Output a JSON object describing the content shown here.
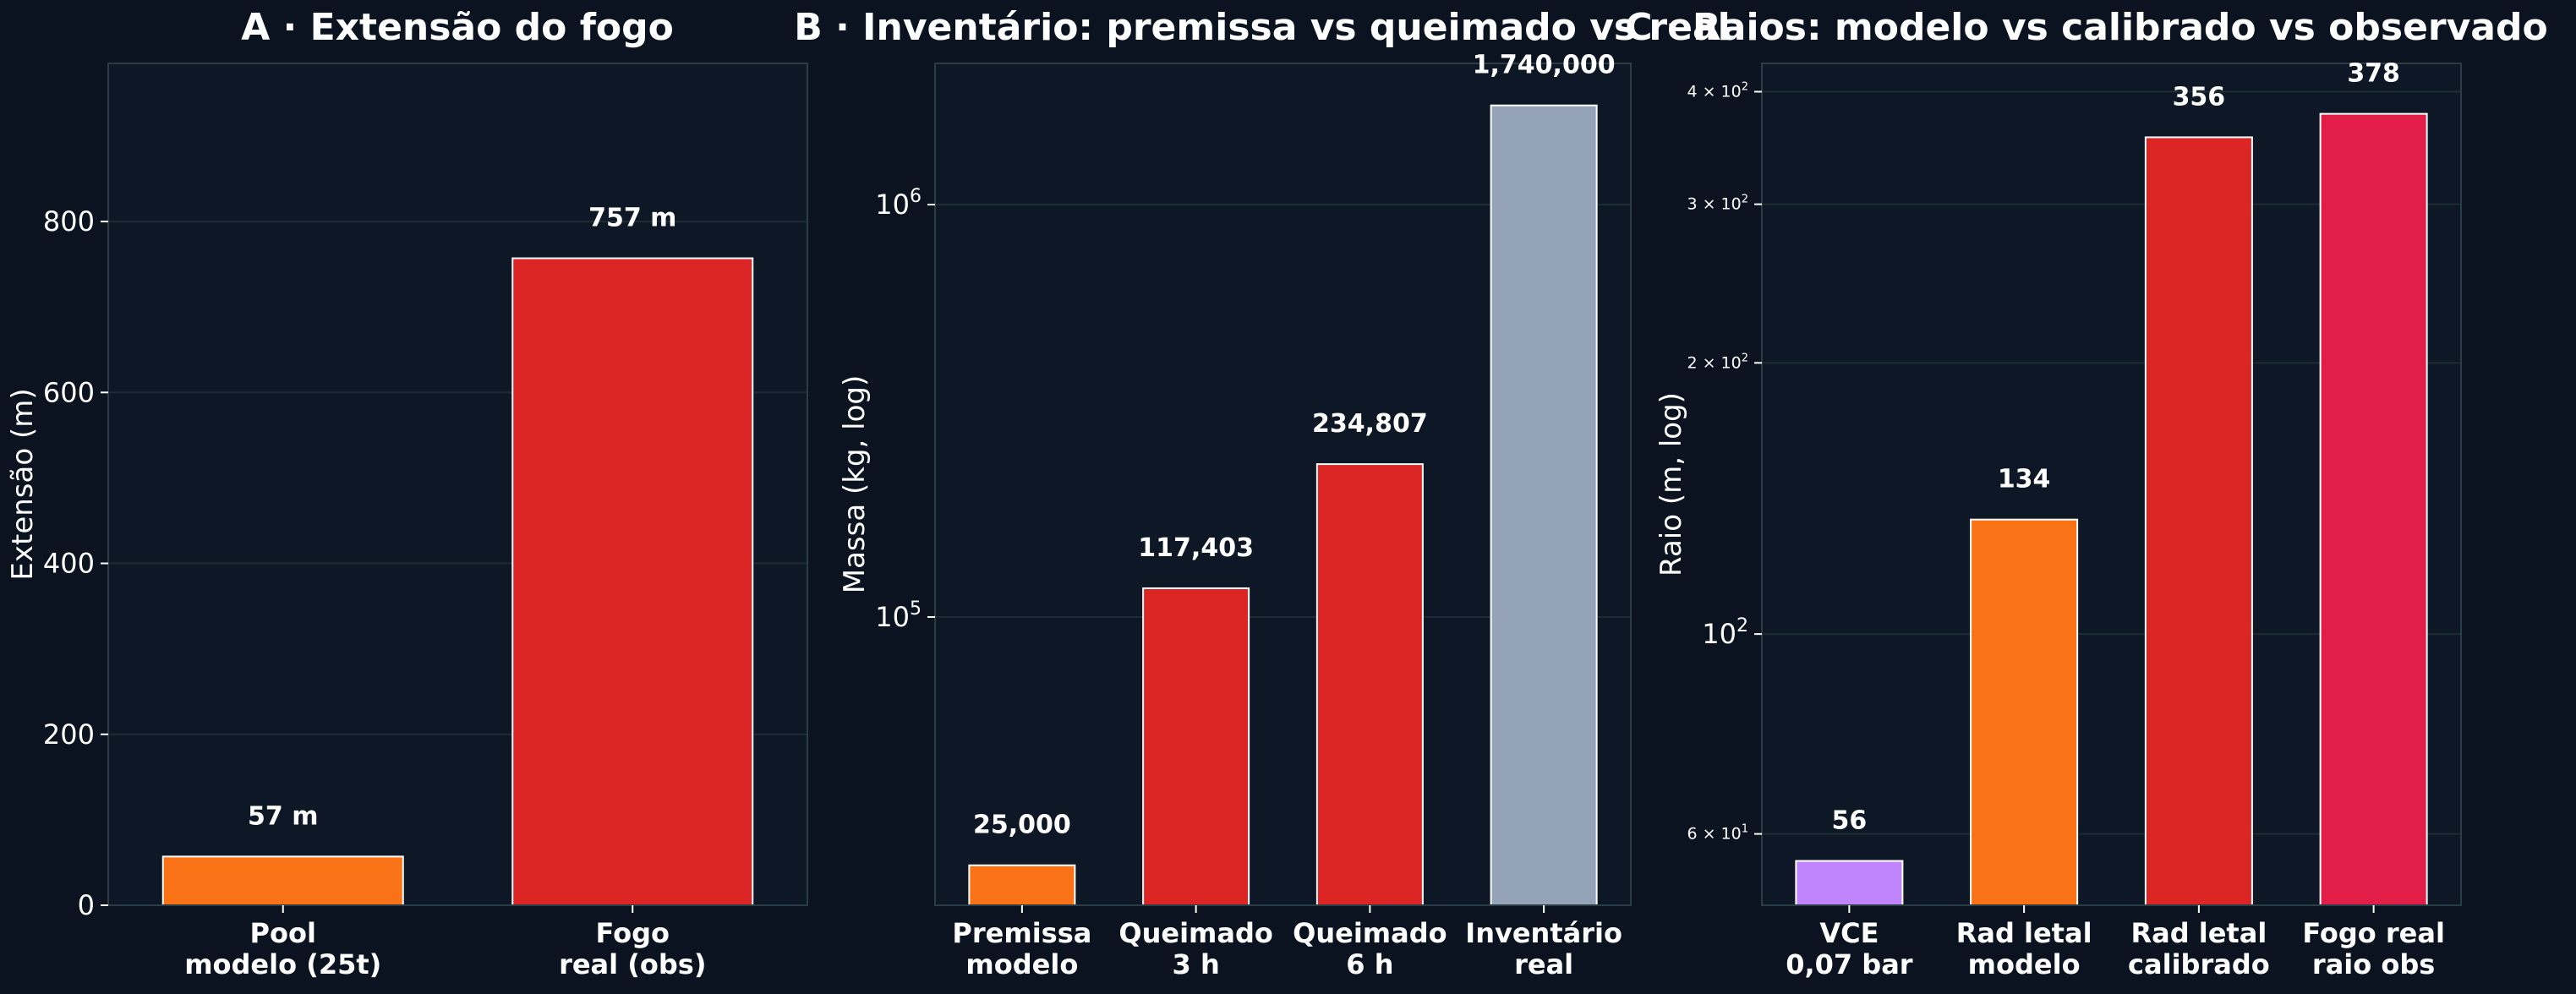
{
  "colors": {
    "background": "#0b1320",
    "axes_face": "#0d1726",
    "axes_border": "#2b3d44",
    "grid": "#1c2d33",
    "text": "#ffffff",
    "bar_edge": "#ffffff"
  },
  "chart_data": [
    {
      "id": "A",
      "type": "bar",
      "title": "A · Extensão do fogo",
      "xlabel": "",
      "ylabel": "Extensão (m)",
      "yscale": "linear",
      "ylim": [
        0,
        985
      ],
      "yticks": [
        0,
        200,
        400,
        600,
        800
      ],
      "ytick_labels": [
        "0",
        "200",
        "400",
        "600",
        "800"
      ],
      "grid": "y",
      "categories": [
        [
          "Pool",
          "modelo (25t)"
        ],
        [
          "Fogo",
          "real (obs)"
        ]
      ],
      "values": [
        57,
        757
      ],
      "value_labels": [
        "57 m",
        "757 m"
      ],
      "bar_colors": [
        "#f97316",
        "#dc2626"
      ]
    },
    {
      "id": "B",
      "type": "bar",
      "title": "B · Inventário: premissa vs queimado vs real",
      "xlabel": "",
      "ylabel": "Massa (kg, log)",
      "yscale": "log",
      "ylim": [
        20000,
        2200000
      ],
      "yticks": [
        100000,
        1000000
      ],
      "ytick_labels": [
        {
          "base": "10",
          "exp": "5"
        },
        {
          "base": "10",
          "exp": "6"
        }
      ],
      "grid": "y",
      "categories": [
        [
          "Premissa",
          "modelo"
        ],
        [
          "Queimado",
          "3 h"
        ],
        [
          "Queimado",
          "6 h"
        ],
        [
          "Inventário",
          "real"
        ]
      ],
      "values": [
        25000,
        117403,
        234807,
        1740000
      ],
      "value_labels": [
        "25,000",
        "117,403",
        "234,807",
        "1,740,000"
      ],
      "bar_colors": [
        "#f97316",
        "#dc2626",
        "#dc2626",
        "#94a3b8"
      ]
    },
    {
      "id": "C",
      "type": "bar",
      "title": "C · Raios: modelo vs calibrado vs observado",
      "xlabel": "",
      "ylabel": "Raio (m, log)",
      "yscale": "log",
      "ylim": [
        50,
        430
      ],
      "yticks": [
        60,
        100,
        200,
        300,
        400
      ],
      "ytick_labels": [
        {
          "base": "6 × 10",
          "exp": "1"
        },
        {
          "base": "10",
          "exp": "2"
        },
        {
          "base": "2 × 10",
          "exp": "2"
        },
        {
          "base": "3 × 10",
          "exp": "2"
        },
        {
          "base": "4 × 10",
          "exp": "2"
        }
      ],
      "major_ticks": [
        100
      ],
      "grid": "y",
      "categories": [
        [
          "VCE",
          "0,07 bar"
        ],
        [
          "Rad letal",
          "modelo"
        ],
        [
          "Rad letal",
          "calibrado"
        ],
        [
          "Fogo real",
          "raio obs"
        ]
      ],
      "values": [
        56,
        134,
        356,
        378
      ],
      "value_labels": [
        "56",
        "134",
        "356",
        "378"
      ],
      "bar_colors": [
        "#c084fc",
        "#f97316",
        "#dc2626",
        "#e11d48"
      ]
    }
  ]
}
